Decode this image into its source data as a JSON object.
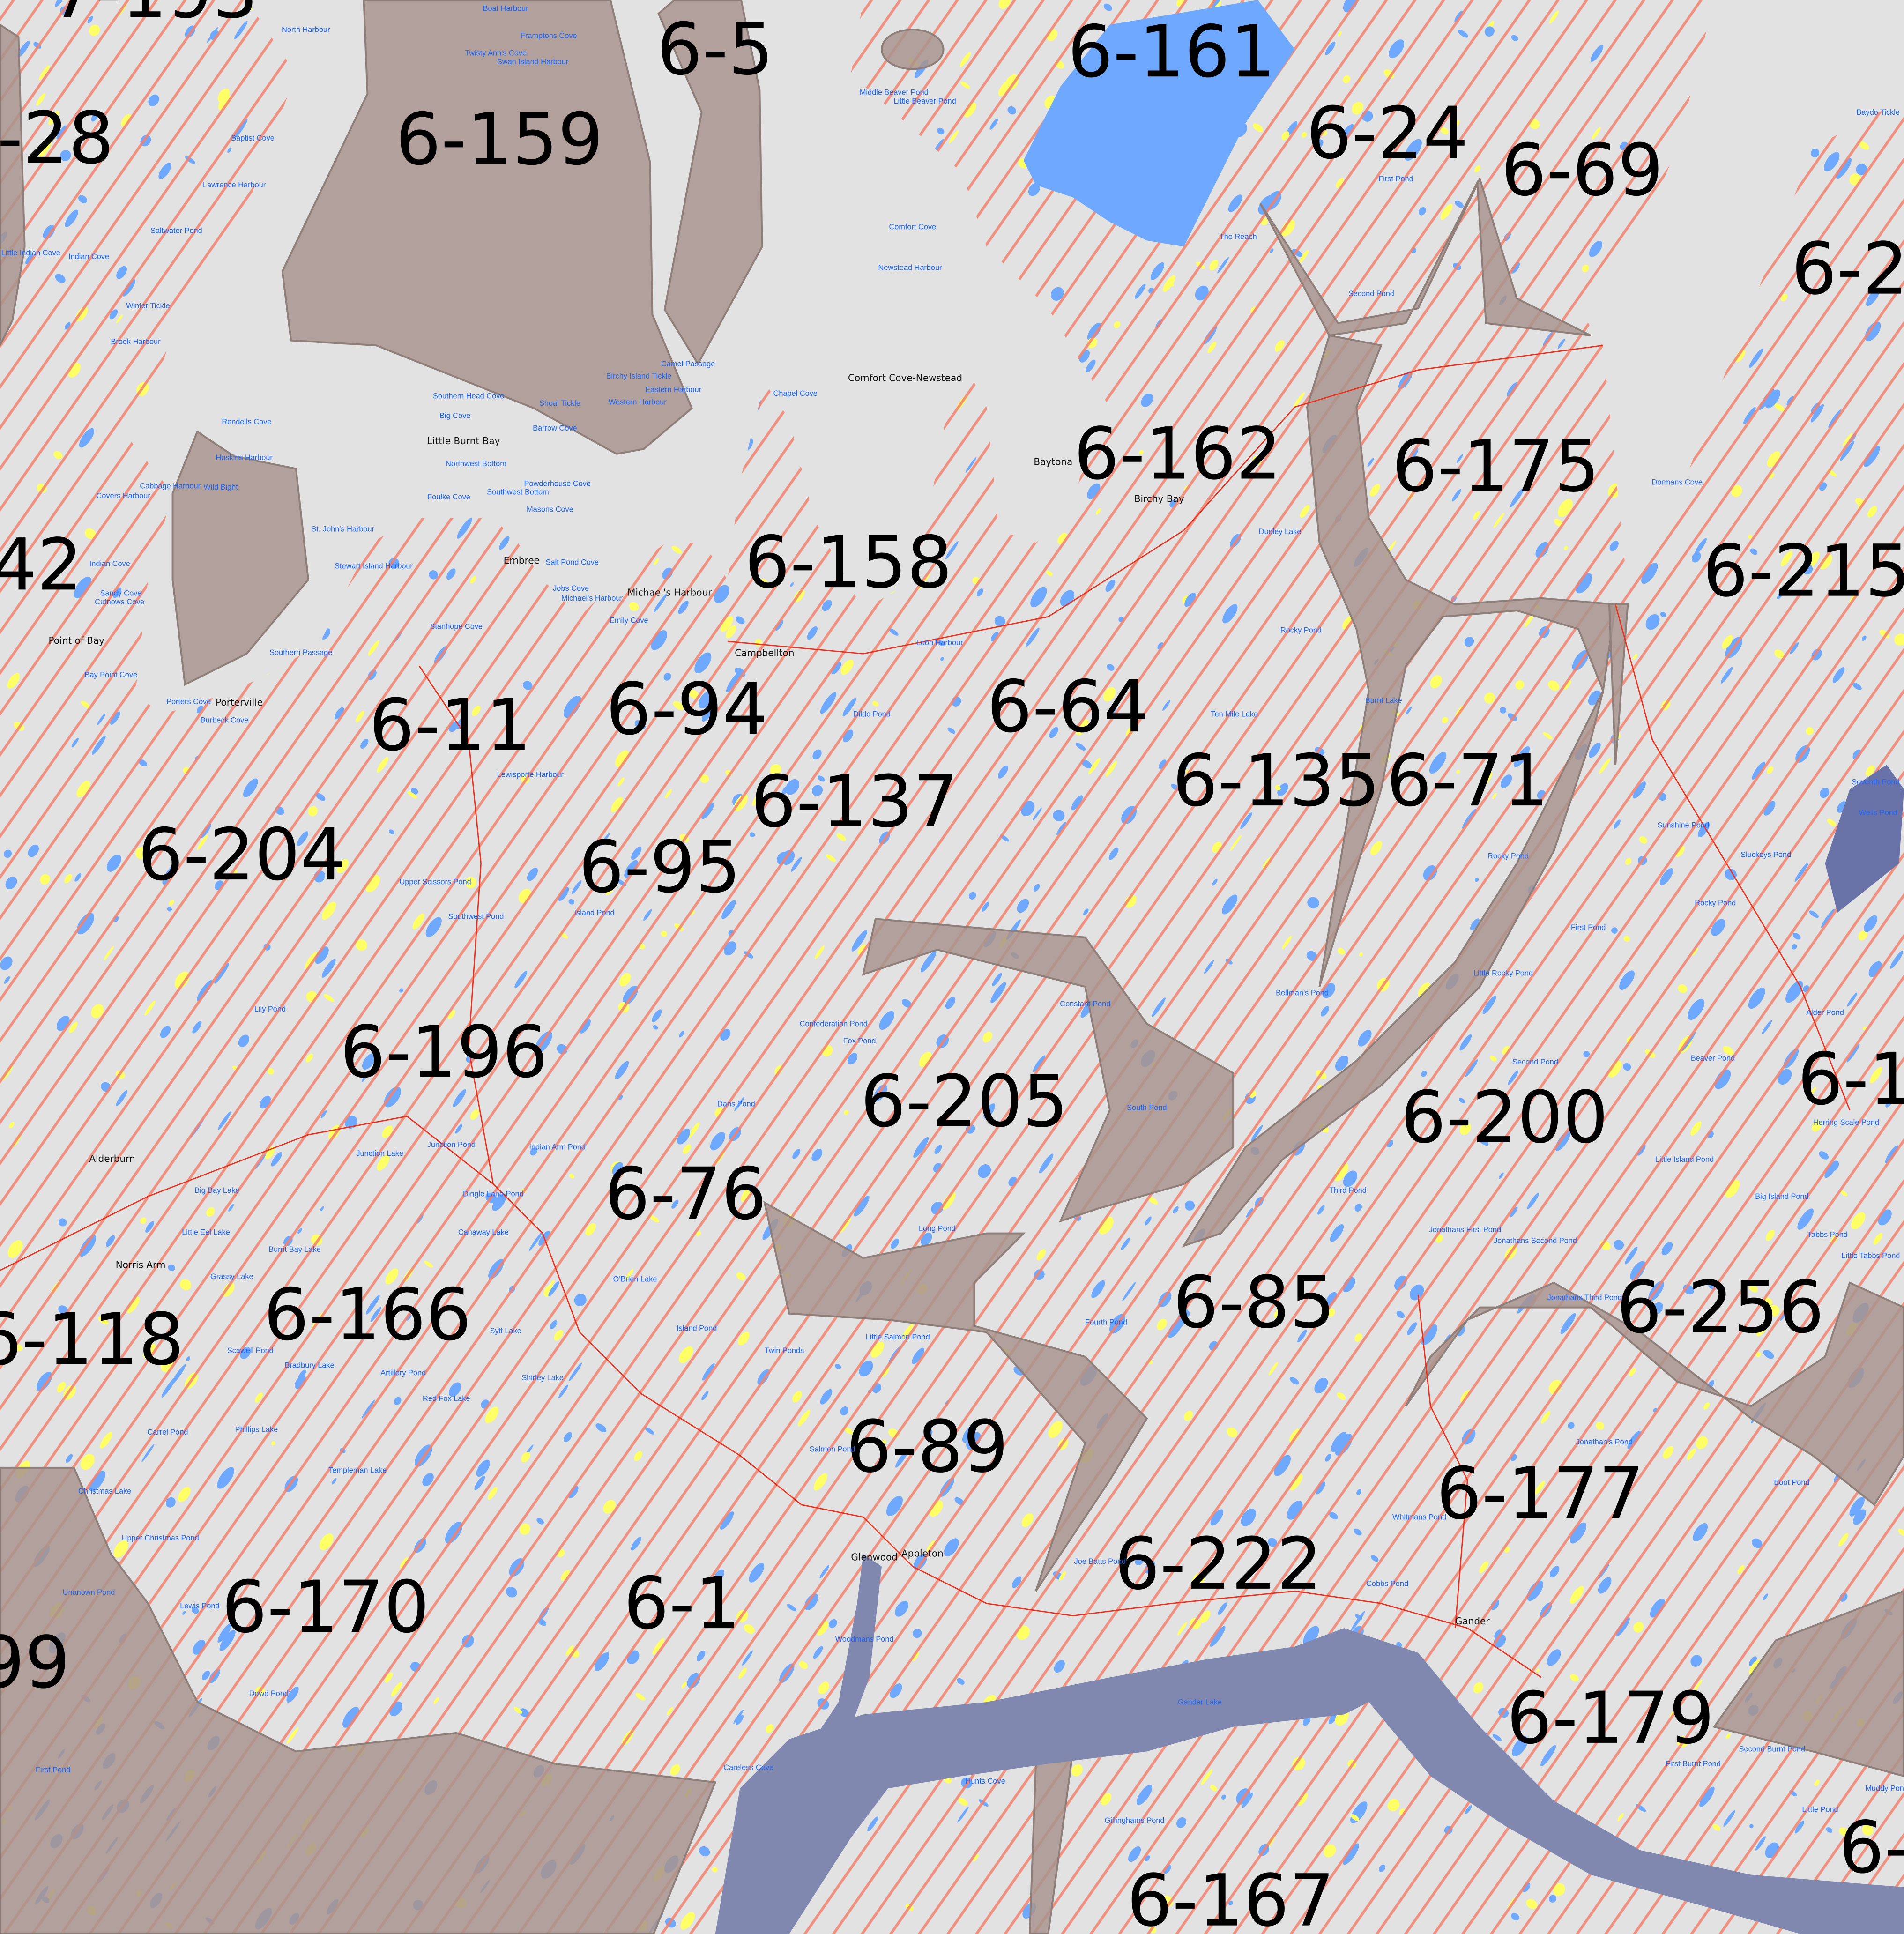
{
  "map": {
    "colors": {
      "background": "#e2e2e2",
      "hatch": "#f0826f",
      "excluded_area": "#a8948e",
      "water": "#6fa8ff",
      "large_lake": "#8088b0",
      "vegetation": "#ffff66",
      "roads": "#e8301c",
      "water_label": "#1a66ff",
      "settlement_label": "#111111"
    },
    "zone_labels": [
      "7-193",
      "6-5",
      "6-161",
      "-28",
      "6-159",
      "6-24",
      "6-69",
      "6-2",
      "6-162",
      "6-175",
      "42",
      "6-158",
      "6-215",
      "6-11",
      "6-94",
      "6-64",
      "6-135",
      "6-71",
      "6-137",
      "6-204",
      "6-95",
      "6-196",
      "6-205",
      "6-200",
      "6-1",
      "6-76",
      "6-166",
      "6-85",
      "6-256",
      "6-118",
      "6-89",
      "6-177",
      "6-222",
      "6-170",
      "6-1",
      "99",
      "6-179",
      "6-167",
      "6-"
    ],
    "water_places": [
      "Boat Harbour",
      "Framptons Cove",
      "Twisty Ann's Cove",
      "Swan Island Harbour",
      "North Harbour",
      "Baptist Cove",
      "Lawrence Harbour",
      "Saltwater Pond",
      "Little Indian Cove",
      "Indian Cove",
      "Winter Tickle",
      "Brook Harbour",
      "Middle Beaver Pond",
      "Little Beaver Pond",
      "Comfort Cove",
      "Newstead Harbour",
      "Camel Passage",
      "Birchy Island Tickle",
      "Eastern Harbour",
      "Western Harbour",
      "Chapel Cove",
      "Southern Head Cove",
      "Big Cove",
      "Shoal Tickle",
      "Barrow Cove",
      "Northwest Bottom",
      "Powderhouse Cove",
      "Southwest Bottom",
      "Foulke Cove",
      "Masons Cove",
      "Rendells Cove",
      "Hoskins Harbour",
      "Cabbage Harbour",
      "Wild Bight",
      "Covers Harbour",
      "St. John's Harbour",
      "Stewart Island Harbour",
      "Indian Cove",
      "Sandy Cove",
      "Cutnows Cove",
      "Salt Pond Cove",
      "Jobs Cove",
      "Michael's Harbour",
      "Emily Cove",
      "Stanhope Cove",
      "Southern Passage",
      "Bay Point Cove",
      "Porters Cove",
      "Burbeck Cove",
      "Lewisporte Harbour",
      "Loon Harbour",
      "Dildo Pond",
      "The Reach",
      "First Pond",
      "Second Pond",
      "Dudley Lake",
      "Rocky Pond",
      "Ten Mile Lake",
      "Burnt Lake",
      "Rocky Pond",
      "Little Rocky Pond",
      "First Pond",
      "Second Pond",
      "Bellman's Pond",
      "Constant Pond",
      "Confederation Pond",
      "Fox Pond",
      "Dans Pond",
      "South Pond",
      "Upper Scissors Pond",
      "Southwest Pond",
      "Island Pond",
      "Lily Pond",
      "Junction Lake",
      "Junction Pond",
      "Indian Arm Pond",
      "Dingle Lane Pond",
      "Third Pond",
      "Jonathans First Pond",
      "Jonathans Second Pond",
      "Jonathans Third Pond",
      "Fourth Pond",
      "Long Pond",
      "Big Bay Lake",
      "Little Eel Lake",
      "Burnt Bay Lake",
      "Canaway Lake",
      "Grassy Lake",
      "O'Brien Lake",
      "Island Pond",
      "Little Salmon Pond",
      "Twin Ponds",
      "Scawell Pond",
      "Bradbury Lake",
      "Artillery Pond",
      "Red Fox Lake",
      "Sylt Lake",
      "Shirley Lake",
      "Carrel Pond",
      "Phillips Lake",
      "Templeman Lake",
      "Christmas Lake",
      "Upper Christmas Pond",
      "Unanown Pond",
      "Lewis Pond",
      "Dowd Pond",
      "First Pond",
      "Salmon Pond",
      "Joe Batts Pond",
      "Woodmans Pond",
      "Careless Cove",
      "Hunts Cove",
      "Gander Lake",
      "Gillinghams Pond",
      "Whitmans Pond",
      "Cobbs Pond",
      "Jonathan's Pond",
      "Boot Pond",
      "Second Burnt Pond",
      "First Burnt Pond",
      "Little Pond",
      "Muddy Pond",
      "Dormans Cove",
      "Sunshine Pond",
      "Sluckeys Pond",
      "Rocky Pond",
      "Beaver Pond",
      "Little Island Pond",
      "Big Island Pond",
      "Tabbs Pond",
      "Herring Scale Pond",
      "Alder Pond",
      "Little Tabbs Pond",
      "Wells Pond",
      "Seventh Pond",
      "Baydo Tickle"
    ],
    "settlements": [
      "Comfort Cove-Newstead",
      "Baytona",
      "Birchy Bay",
      "Little Burnt Bay",
      "Embree",
      "Michael's Harbour",
      "Campbellton",
      "Point of Bay",
      "Porterville",
      "Alderburn",
      "Norris Arm",
      "Glenwood",
      "Appleton",
      "Gander"
    ]
  }
}
